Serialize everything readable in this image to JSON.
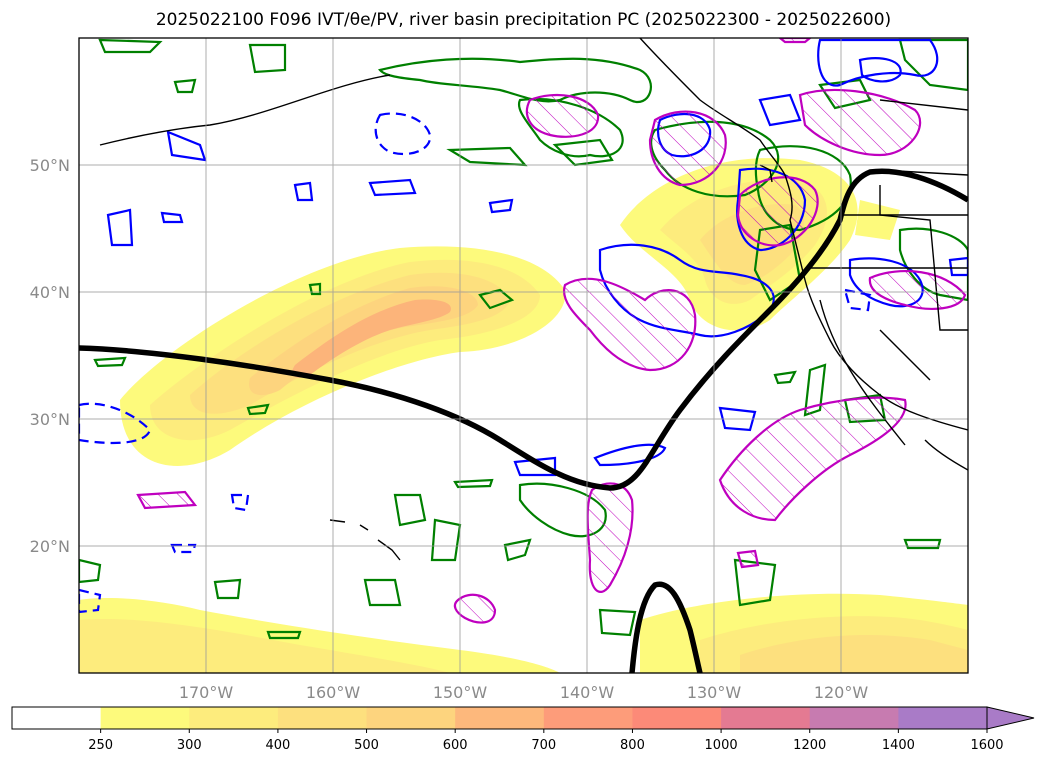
{
  "title": "2025022100 F096 IVT/θe/PV, river basin precipitation PC (2025022300 - 2025022600)",
  "map": {
    "lon_range": [
      -180,
      -110
    ],
    "lat_range": [
      10,
      60
    ],
    "lat_labels": [
      "50°N",
      "40°N",
      "30°N",
      "20°N"
    ],
    "lon_labels": [
      "170°W",
      "160°W",
      "150°W",
      "140°W",
      "130°W",
      "120°W"
    ],
    "colors": {
      "land_coast": "#000000",
      "theta_e_contour": "#000000",
      "pv_pos": "#0000ff",
      "pv_neg_dashed": "#0000ff",
      "precip_hatch": "#bf00bf",
      "ivt_other_contour": "#008000",
      "ivt_low": "#fdfa7c",
      "ivt_mid": "#fddc7a",
      "ivt_high": "#fcb47a"
    }
  },
  "colorbar": {
    "levels": [
      "250",
      "300",
      "400",
      "500",
      "600",
      "700",
      "800",
      "1000",
      "1200",
      "1400",
      "1600"
    ],
    "colors": [
      "#ffffff",
      "#fdfa7c",
      "#fdec7d",
      "#fde07e",
      "#fdd47e",
      "#fdb87c",
      "#fd9c7a",
      "#fc8a78",
      "#e47a92",
      "#c77bb0",
      "#a97bc7"
    ],
    "extend": "max"
  }
}
